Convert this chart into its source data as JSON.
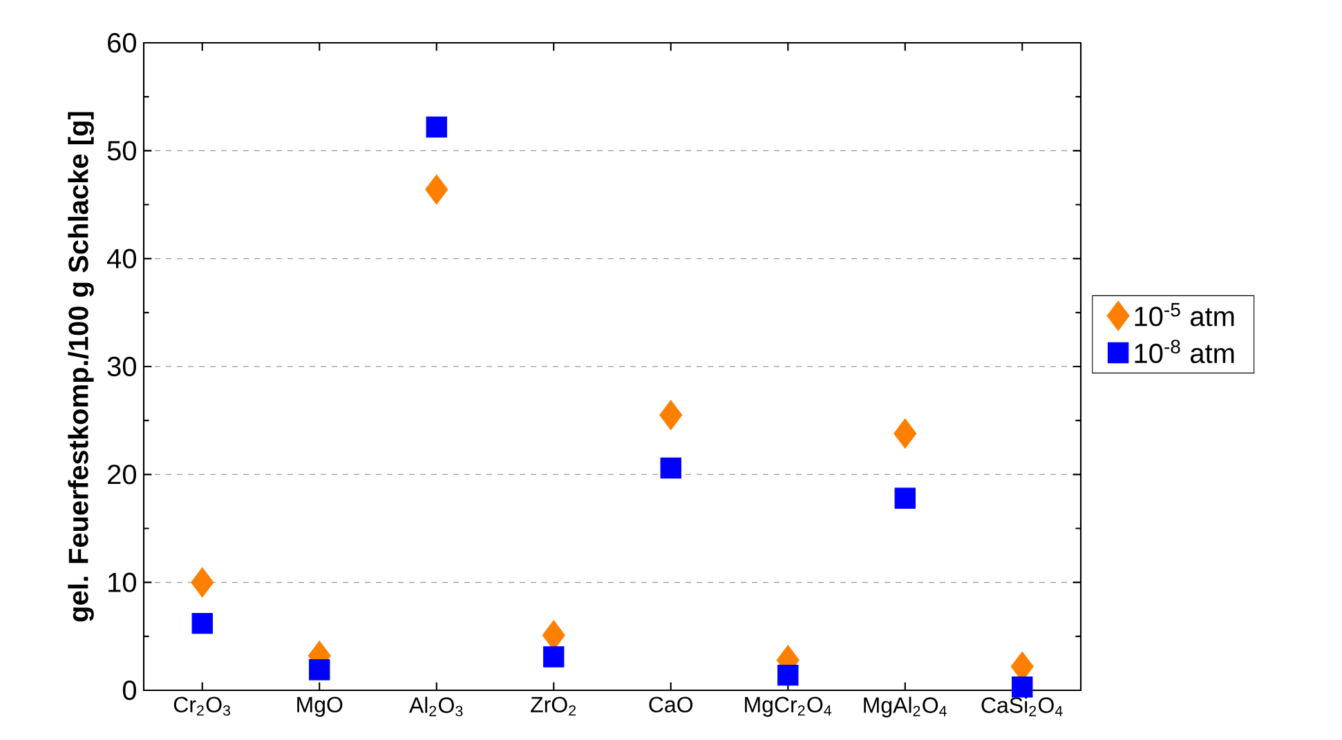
{
  "chart_data": {
    "type": "scatter",
    "ylabel": "gel. Feuerfestkomp./100 g Schlacke [g]",
    "categories": [
      "Cr$_{2}$O$_{3}$",
      "MgO",
      "Al$_{2}$O$_{3}$",
      "ZrO$_{2}$",
      "CaO",
      "MgCr$_{2}$O$_{4}$",
      "MgAl$_{2}$O$_{4}$",
      "CaSi$_{2}$O$_{4}$"
    ],
    "series": [
      {
        "name": "10$^{-5}$ atm",
        "color": "#ff7f00",
        "marker": "diamond",
        "values": [
          10.0,
          3.2,
          46.4,
          5.1,
          25.5,
          2.8,
          23.8,
          2.2
        ]
      },
      {
        "name": "10$^{-8}$ atm",
        "color": "#0000ff",
        "marker": "square",
        "values": [
          6.2,
          1.9,
          52.2,
          3.1,
          20.6,
          1.4,
          17.8,
          0.3
        ]
      }
    ],
    "ylim": [
      0,
      60
    ],
    "yticks": [
      0,
      10,
      20,
      30,
      40,
      50,
      60
    ],
    "grid": "y",
    "legend": "right"
  }
}
